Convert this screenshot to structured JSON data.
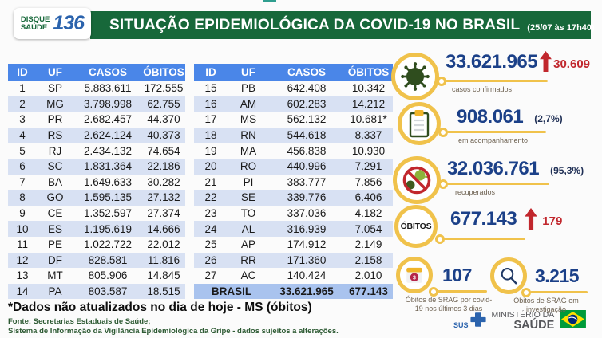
{
  "header": {
    "logo_line1": "DISQUE",
    "logo_line2": "SAÚDE",
    "logo_number": "136",
    "title": "SITUAÇÃO EPIDEMIOLÓGICA DA COVID-19 NO BRASIL",
    "timestamp": "(25/07 às 17h40)"
  },
  "table": {
    "headers": [
      "ID",
      "UF",
      "CASOS",
      "ÓBITOS"
    ],
    "left_rows": [
      [
        "1",
        "SP",
        "5.883.611",
        "172.555"
      ],
      [
        "2",
        "MG",
        "3.798.998",
        "62.755"
      ],
      [
        "3",
        "PR",
        "2.682.457",
        "44.370"
      ],
      [
        "4",
        "RS",
        "2.624.124",
        "40.373"
      ],
      [
        "5",
        "RJ",
        "2.434.132",
        "74.654"
      ],
      [
        "6",
        "SC",
        "1.831.364",
        "22.186"
      ],
      [
        "7",
        "BA",
        "1.649.633",
        "30.282"
      ],
      [
        "8",
        "GO",
        "1.595.135",
        "27.132"
      ],
      [
        "9",
        "CE",
        "1.352.597",
        "27.374"
      ],
      [
        "10",
        "ES",
        "1.195.619",
        "14.666"
      ],
      [
        "11",
        "PE",
        "1.022.722",
        "22.012"
      ],
      [
        "12",
        "DF",
        "828.581",
        "11.816"
      ],
      [
        "13",
        "MT",
        "805.906",
        "14.845"
      ],
      [
        "14",
        "PA",
        "803.587",
        "18.515"
      ]
    ],
    "right_rows": [
      [
        "15",
        "PB",
        "642.408",
        "10.342"
      ],
      [
        "16",
        "AM",
        "602.283",
        "14.212"
      ],
      [
        "17",
        "MS",
        "562.132",
        "10.681*"
      ],
      [
        "18",
        "RN",
        "544.618",
        "8.337"
      ],
      [
        "19",
        "MA",
        "456.838",
        "10.930"
      ],
      [
        "20",
        "RO",
        "440.996",
        "7.291"
      ],
      [
        "21",
        "PI",
        "383.777",
        "7.856"
      ],
      [
        "22",
        "SE",
        "339.776",
        "6.406"
      ],
      [
        "23",
        "TO",
        "337.036",
        "4.182"
      ],
      [
        "24",
        "AL",
        "316.939",
        "7.054"
      ],
      [
        "25",
        "AP",
        "174.912",
        "2.149"
      ],
      [
        "26",
        "RR",
        "171.360",
        "2.158"
      ],
      [
        "27",
        "AC",
        "140.424",
        "2.010"
      ]
    ],
    "total": {
      "label": "BRASIL",
      "casos": "33.621.965",
      "obitos": "677.143"
    }
  },
  "stats": {
    "confirmed": {
      "value": "33.621.965",
      "delta": "30.609",
      "label": "casos confirmados"
    },
    "followup": {
      "value": "908.061",
      "percent": "(2,7%)",
      "label": "em acompanhamento"
    },
    "recovered": {
      "value": "32.036.761",
      "percent": "(95,3%)",
      "label": "recuperados"
    },
    "deaths": {
      "badge": "ÓBITOS",
      "value": "677.143",
      "delta": "179"
    },
    "srag_recent": {
      "value": "107",
      "calendar_badge": "3",
      "label": "Óbitos de SRAG por covid-19 nos últimos 3 dias"
    },
    "srag_investigation": {
      "value": "3.215",
      "label": "Óbitos de SRAG em investigação"
    }
  },
  "notes": {
    "footnote": "*Dados não atualizados no dia de hoje - MS (óbitos)"
  },
  "footer": {
    "source_line1": "Fonte: Secretarias Estaduais de Saúde;",
    "source_line2": "Sistema de Informação da Vigilância Epidemiológica da Gripe - dados sujeitos a alterações.",
    "sus_label": "SUS",
    "ministry_line1": "MINISTÉRIO DA",
    "ministry_line2": "SAÚDE"
  },
  "colors": {
    "header_green": "#17683a",
    "table_header_blue": "#4a86e8",
    "row_alt_blue": "#d8e1f3",
    "total_row_blue": "#a9c3ee",
    "number_blue": "#1b4088",
    "accent_red": "#c1272d",
    "accent_yellow": "#f0c24b",
    "logo_blue": "#2b63ad",
    "footer_green": "#2d5a33"
  }
}
